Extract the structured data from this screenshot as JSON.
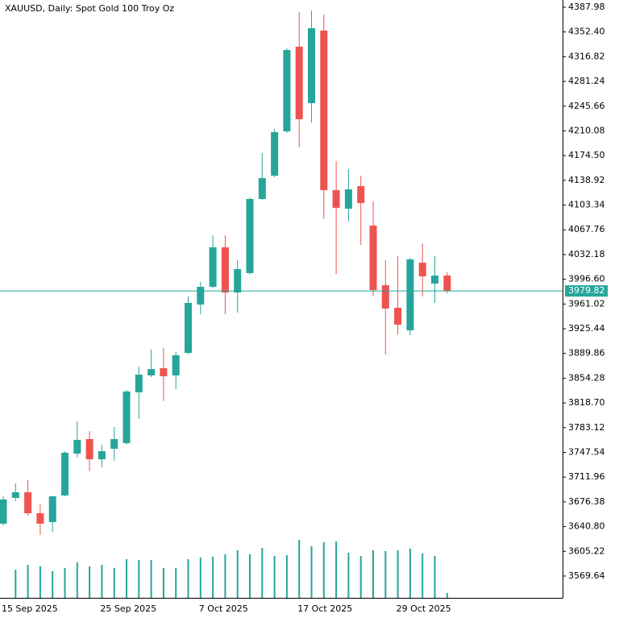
{
  "chart_data": {
    "type": "candlestick",
    "title": "XAUUSD, Daily:  Spot Gold 100 Troy Oz",
    "categories": [
      "15 Sep 2025",
      null,
      null,
      null,
      null,
      null,
      null,
      null,
      "25 Sep 2025",
      null,
      null,
      null,
      null,
      null,
      null,
      null,
      "7 Oct 2025",
      null,
      null,
      null,
      null,
      null,
      null,
      null,
      "17 Oct 2025",
      null,
      null,
      null,
      null,
      null,
      null,
      null,
      "29 Oct 2025",
      null,
      null,
      null,
      null
    ],
    "open": [
      3645.0,
      3682.1,
      3690.2,
      3660.0,
      3647.3,
      3685.6,
      3745.8,
      3766.7,
      3737.7,
      3752.8,
      3760.9,
      3833.9,
      3858.3,
      3868.7,
      3858.3,
      3890.7,
      3960.3,
      3985.8,
      4042.6,
      3977.6,
      4005.5,
      4112.1,
      4145.7,
      4209.5,
      4331.2,
      4250.0,
      4354.4,
      4124.8,
      4098.2,
      4130.6,
      4073.8,
      3988.1,
      3955.6,
      3923.2,
      4020.5,
      3990.4,
      4002.0
    ],
    "high": [
      3684.4,
      3702.9,
      3707.6,
      3672.8,
      3684.4,
      3749.3,
      3792.2,
      3778.3,
      3758.6,
      3784.1,
      3837.4,
      3871.0,
      3895.4,
      3897.7,
      3891.9,
      3971.9,
      3992.7,
      4060.0,
      4060.0,
      4024.0,
      4114.4,
      4178.2,
      4212.9,
      4328.9,
      4381.0,
      4383.3,
      4377.5,
      4166.6,
      4155.0,
      4145.7,
      4108.6,
      4024.0,
      4029.8,
      4027.5,
      4048.3,
      4029.8,
      4006.6
    ],
    "low": [
      3642.7,
      3677.4,
      3656.6,
      3628.8,
      3633.4,
      3684.4,
      3740.0,
      3720.3,
      3726.1,
      3735.4,
      3758.6,
      3795.7,
      3855.9,
      3821.2,
      3838.6,
      3888.4,
      3946.4,
      3983.4,
      3946.4,
      3948.7,
      4003.1,
      4110.9,
      4143.4,
      4207.1,
      4186.3,
      4222.2,
      4083.1,
      4004.3,
      4079.6,
      4046.0,
      3971.9,
      3888.4,
      3917.3,
      3916.2,
      3971.9,
      3962.6,
      3976.5
    ],
    "close": [
      3679.8,
      3690.2,
      3660.0,
      3645.0,
      3684.4,
      3747.0,
      3765.5,
      3737.7,
      3749.3,
      3766.7,
      3835.1,
      3859.4,
      3867.5,
      3857.1,
      3887.2,
      3962.6,
      3985.8,
      4042.6,
      3977.6,
      4011.3,
      4112.1,
      4142.2,
      4208.3,
      4326.5,
      4226.9,
      4357.8,
      4124.8,
      4099.4,
      4126.0,
      4106.3,
      3981.1,
      3954.5,
      3931.3,
      4025.2,
      4000.8,
      4002.0,
      3979.82
    ],
    "volume": [
      null,
      35,
      41,
      39,
      33,
      37,
      44,
      39,
      41,
      37,
      48,
      47,
      47,
      37,
      37,
      48,
      50,
      51,
      54,
      59,
      54,
      62,
      52,
      53,
      72,
      64,
      69,
      70,
      56,
      52,
      59,
      58,
      59,
      61,
      55,
      52,
      6
    ],
    "vlim": [
      0,
      100
    ],
    "up_color": "#26a69a",
    "down_color": "#ef5350",
    "volume_color": "#26a69a",
    "last_price": 3979.82,
    "last_price_color": "#26a69a",
    "ylim": [
      3538.3,
      4398.4
    ],
    "yticks": [
      4387.98,
      {
        "value": 4352.4,
        "label": "4352.40"
      },
      4316.82,
      4281.24,
      4245.66,
      4210.08,
      {
        "value": 4174.5,
        "label": "4174.50"
      },
      4138.92,
      4103.34,
      4067.76,
      4032.18,
      {
        "value": 3996.6,
        "label": "3996.60"
      },
      3961.02,
      3925.44,
      3889.86,
      3854.28,
      {
        "value": 3818.7,
        "label": "3818.70"
      },
      3783.12,
      3747.54,
      3711.96,
      3676.38,
      {
        "value": 3640.8,
        "label": "3640.80"
      },
      3605.22,
      3569.64
    ]
  }
}
